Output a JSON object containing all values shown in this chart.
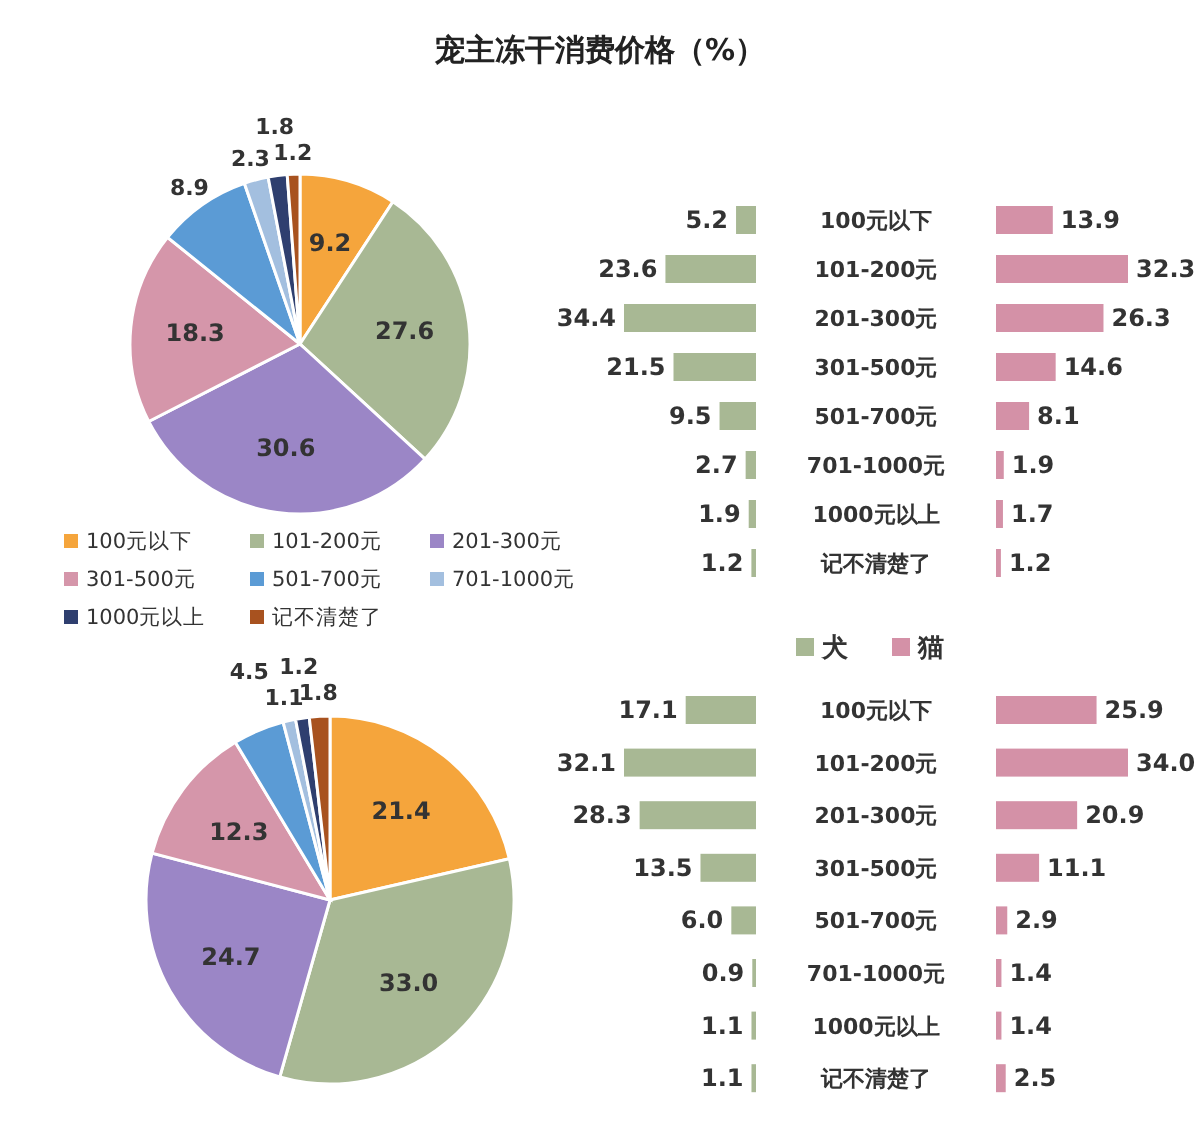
{
  "chart_data": [
    {
      "type": "pie",
      "title": "宠主冻干消费价格（%）",
      "categories": [
        "100元以下",
        "101-200元",
        "201-300元",
        "301-500元",
        "501-700元",
        "701-1000元",
        "1000元以上",
        "记不清楚了"
      ],
      "values": [
        9.2,
        27.6,
        30.6,
        18.3,
        8.9,
        2.3,
        1.8,
        1.2
      ],
      "colors": [
        "#f5a53c",
        "#a8b894",
        "#9b86c6",
        "#d596aa",
        "#5b9bd5",
        "#a3bfdf",
        "#2f3f6f",
        "#a8521f"
      ],
      "data_labels": true,
      "legend": "bottom"
    },
    {
      "type": "bar",
      "orientation": "horizontal",
      "categories": [
        "100元以下",
        "101-200元",
        "201-300元",
        "301-500元",
        "501-700元",
        "701-1000元",
        "1000元以上",
        "记不清楚了"
      ],
      "series": [
        {
          "color": "#a8b894",
          "values": [
            5.2,
            23.6,
            34.4,
            21.5,
            9.5,
            2.7,
            1.9,
            1.2
          ]
        }
      ],
      "data_labels": true
    },
    {
      "type": "bar",
      "orientation": "horizontal",
      "categories": [
        null,
        null,
        null,
        null,
        null,
        null,
        null,
        null
      ],
      "series": [
        {
          "color": "#d491a7",
          "values": [
            13.9,
            32.3,
            26.3,
            14.6,
            8.1,
            1.9,
            1.7,
            1.2
          ]
        }
      ],
      "data_labels": true
    },
    {
      "type": "pie",
      "categories": [
        null,
        null,
        null,
        null,
        null,
        null,
        null,
        null
      ],
      "values": [
        21.4,
        33.0,
        24.7,
        12.3,
        4.5,
        1.1,
        1.2,
        1.8
      ],
      "value_labels": [
        "21.4",
        "33.0",
        "24.7",
        "12.3",
        "4.5",
        "1.1",
        "1.2",
        "1.8"
      ],
      "colors": [
        "#f5a53c",
        "#a8b894",
        "#9b86c6",
        "#d596aa",
        "#5b9bd5",
        "#a3bfdf",
        "#2f3f6f",
        "#a8521f"
      ]
    },
    {
      "type": "bar",
      "orientation": "horizontal",
      "categories": [
        "100元以下",
        "101-200元",
        "201-300元",
        "301-500元",
        "501-700元",
        "701-1000元",
        "1000元以上",
        "记不清楚了"
      ],
      "series": [
        {
          "name": "犬",
          "color": "#a8b894",
          "values": [
            17.1,
            32.1,
            28.3,
            13.5,
            6.0,
            0.9,
            1.1,
            1.1
          ],
          "value_labels": [
            "17.1",
            "32.1",
            "28.3",
            "13.5",
            "6.0",
            "0.9",
            "1.1",
            "1.1"
          ]
        }
      ],
      "legend": "top"
    },
    {
      "type": "bar",
      "orientation": "horizontal",
      "categories": [
        null,
        null,
        null,
        null,
        null,
        null,
        null,
        null
      ],
      "series": [
        {
          "name": "猫",
          "color": "#d491a7",
          "values": [
            25.9,
            34.0,
            20.9,
            11.1,
            2.9,
            1.4,
            1.4,
            2.5
          ],
          "value_labels": [
            "25.9",
            "34.0",
            "20.9",
            "11.1",
            "2.9",
            "1.4",
            "1.4",
            "2.5"
          ]
        }
      ],
      "legend": "top"
    }
  ]
}
